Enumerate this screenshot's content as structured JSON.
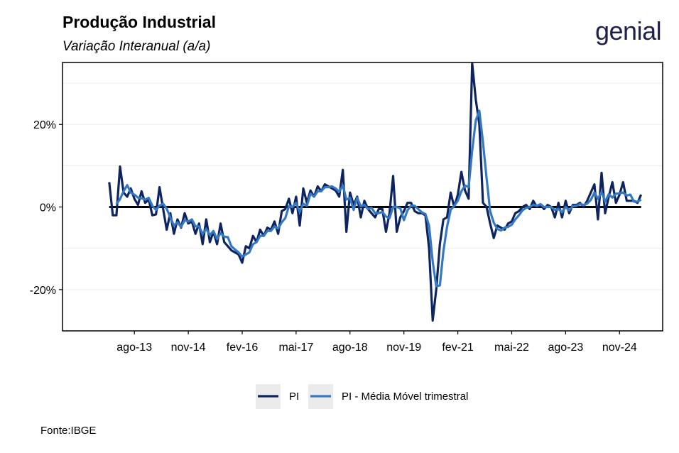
{
  "header": {
    "title": "Produção Industrial",
    "subtitle": "Variação Interanual (a/a)",
    "logo_text": "genial"
  },
  "source": "Fonte:IBGE",
  "chart_data": {
    "type": "line",
    "title": "Produção Industrial",
    "subtitle": "Variação Interanual (a/a)",
    "xlabel": "",
    "ylabel": "",
    "x_start": "2013-01",
    "x_frequency": "monthly",
    "xlim": [
      "2011-12",
      "2025-11"
    ],
    "ylim": [
      -30,
      35
    ],
    "yticks": [
      -20,
      0,
      20
    ],
    "ytick_labels": [
      "-20%",
      "0%",
      "20%"
    ],
    "xticks": [
      "2013-08",
      "2014-11",
      "2016-02",
      "2017-05",
      "2018-08",
      "2019-11",
      "2021-02",
      "2022-05",
      "2023-08",
      "2024-11"
    ],
    "xtick_labels": [
      "ago-13",
      "nov-14",
      "fev-16",
      "mai-17",
      "ago-18",
      "nov-19",
      "fev-21",
      "mai-22",
      "ago-23",
      "nov-24"
    ],
    "grid": true,
    "legend_position": "bottom",
    "zero_line": true,
    "series": [
      {
        "name": "PI",
        "color": "#0d2461",
        "values": [
          6.0,
          -2.0,
          -2.0,
          9.8,
          3.5,
          2.5,
          4.5,
          2.0,
          0.5,
          3.8,
          1.0,
          1.8,
          -2.0,
          -1.8,
          4.8,
          -0.5,
          -5.5,
          -1.5,
          -6.5,
          -3.0,
          -5.0,
          -1.5,
          -4.0,
          -3.5,
          -6.5,
          -4.0,
          -9.0,
          -3.0,
          -8.5,
          -6.0,
          -9.0,
          -4.0,
          -8.5,
          -9.5,
          -10.5,
          -11.0,
          -11.5,
          -13.5,
          -9.5,
          -10.0,
          -7.0,
          -8.5,
          -5.5,
          -7.0,
          -5.0,
          -5.5,
          -3.5,
          -6.5,
          -1.0,
          -0.5,
          2.0,
          -1.5,
          2.5,
          -4.5,
          4.5,
          1.0,
          4.0,
          2.5,
          5.0,
          3.8,
          5.5,
          5.0,
          4.5,
          4.0,
          2.5,
          9.0,
          -6.0,
          3.5,
          0.5,
          2.5,
          -2.5,
          1.5,
          -0.5,
          -1.5,
          -2.5,
          -0.5,
          -0.5,
          -6.0,
          -1.5,
          7.5,
          -6.0,
          -2.5,
          -1.0,
          1.0,
          1.0,
          -1.0,
          -1.5,
          -1.5,
          -2.0,
          -10.0,
          -27.5,
          -20.0,
          -9.0,
          -3.0,
          -2.5,
          3.5,
          0.0,
          3.0,
          8.5,
          4.0,
          2.0,
          34.8,
          26.0,
          20.0,
          1.0,
          0.0,
          -4.0,
          -7.5,
          -4.5,
          -5.0,
          -5.5,
          -4.0,
          -3.5,
          -1.5,
          -1.0,
          0.0,
          0.5,
          -0.5,
          1.5,
          0.0,
          0.5,
          -0.5,
          0.5,
          0.0,
          -2.5,
          1.0,
          -2.5,
          1.5,
          -1.5,
          0.5,
          0.5,
          1.0,
          0.0,
          1.5,
          3.5,
          5.5,
          -3.0,
          8.3,
          -1.5,
          2.5,
          6.0,
          1.0,
          3.0,
          6.0,
          1.5,
          1.5,
          1.5,
          1.0,
          3.0
        ]
      },
      {
        "name": "PI - Média Móvel trimestral",
        "color": "#3478c2",
        "values": [
          null,
          null,
          0.7,
          1.9,
          3.8,
          5.3,
          3.5,
          3.0,
          2.3,
          2.1,
          1.8,
          2.2,
          0.3,
          -0.7,
          0.3,
          0.8,
          -0.4,
          -2.5,
          -4.5,
          -3.7,
          -4.8,
          -3.2,
          -3.5,
          -3.0,
          -4.7,
          -4.7,
          -6.5,
          -5.3,
          -6.8,
          -5.8,
          -7.8,
          -6.3,
          -7.2,
          -7.3,
          -9.5,
          -10.3,
          -11.0,
          -12.0,
          -11.5,
          -11.0,
          -9.0,
          -8.5,
          -7.0,
          -7.0,
          -5.8,
          -5.8,
          -4.7,
          -5.2,
          -3.7,
          -2.7,
          0.2,
          0.0,
          1.0,
          -1.2,
          0.8,
          0.3,
          3.2,
          2.5,
          3.8,
          3.8,
          4.8,
          4.8,
          5.0,
          4.5,
          3.7,
          5.2,
          1.8,
          2.2,
          -0.7,
          2.2,
          0.2,
          0.5,
          -0.5,
          -0.2,
          -1.5,
          -1.5,
          -1.2,
          -2.3,
          -2.7,
          0.0,
          0.0,
          -0.3,
          -3.2,
          -0.8,
          0.3,
          0.3,
          -0.5,
          -1.3,
          -1.7,
          -4.5,
          -13.2,
          -19.2,
          -19.0,
          -10.7,
          -4.8,
          -0.7,
          0.3,
          1.5,
          3.8,
          5.2,
          4.8,
          13.6,
          21.0,
          23.3,
          15.7,
          7.0,
          -1.0,
          -3.8,
          -5.3,
          -5.7,
          -5.0,
          -4.8,
          -4.3,
          -3.0,
          -2.0,
          -0.8,
          -0.2,
          0.0,
          0.5,
          0.3,
          0.7,
          0.0,
          0.0,
          0.0,
          -0.7,
          -0.5,
          -1.3,
          0.0,
          -0.8,
          0.2,
          0.3,
          0.7,
          0.5,
          0.8,
          1.7,
          3.5,
          2.0,
          3.6,
          1.3,
          3.1,
          2.3,
          3.2,
          3.3,
          3.5,
          2.8,
          3.0,
          1.3,
          1.3,
          1.8
        ]
      }
    ]
  }
}
